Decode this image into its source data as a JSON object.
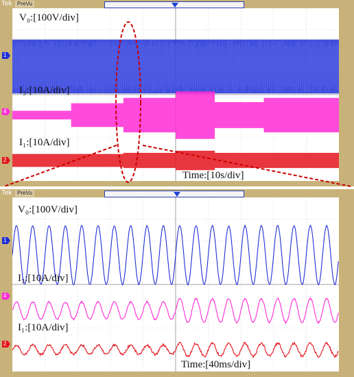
{
  "colors": {
    "frame": "#c8b27a",
    "ch1": "#1f2fd6",
    "ch4": "#ff2bd6",
    "ch2": "#e4141c",
    "grid": "#b9b9b9",
    "annotation": "#cc0000"
  },
  "top_scope": {
    "brand": "Tek",
    "mode": "PreVu",
    "labels": {
      "v0": "V₀:[100V/div]",
      "i3": "I₃:[10A/div]",
      "i1": "I₁:[10A/div]",
      "time": "Time:[10s/div]"
    },
    "markers": [
      "1",
      "4",
      "2"
    ]
  },
  "bottom_scope": {
    "brand": "Tek",
    "mode": "PreVu",
    "labels": {
      "v0": "V₀:[100V/div]",
      "i3": "I₃:[10A/div]",
      "i1": "I₁:[10A/div]",
      "time": "Time:[40ms/div]"
    },
    "markers": [
      "1",
      "4",
      "2"
    ]
  },
  "chart_data": [
    {
      "type": "line",
      "title": "",
      "x_unit_per_div": "10s/div",
      "grid": true,
      "grid_divisions": [
        10,
        8
      ],
      "series": [
        {
          "name": "V₀",
          "scale": "100V/div",
          "style": "envelope",
          "envelope_levels_div": [
            2.5,
            2.5,
            2.5,
            2.5,
            2.5,
            2.5,
            2.5,
            2.5,
            2.5,
            2.5
          ]
        },
        {
          "name": "I₃",
          "scale": "10A/div",
          "style": "envelope",
          "envelope_steps": [
            [
              0.0,
              1.8,
              0.2
            ],
            [
              1.8,
              3.4,
              0.55
            ],
            [
              3.4,
              5.0,
              0.8
            ],
            [
              5.0,
              6.2,
              1.1
            ],
            [
              6.2,
              7.7,
              0.6
            ],
            [
              7.7,
              10.0,
              0.8
            ]
          ]
        },
        {
          "name": "I₁",
          "scale": "10A/div",
          "style": "envelope",
          "envelope_steps": [
            [
              0.0,
              3.4,
              0.3
            ],
            [
              3.4,
              5.0,
              0.35
            ],
            [
              5.0,
              6.2,
              0.45
            ],
            [
              6.2,
              10.0,
              0.35
            ]
          ]
        }
      ]
    },
    {
      "type": "line",
      "title": "",
      "x_unit_per_div": "40ms/div",
      "grid": true,
      "grid_divisions": [
        10,
        8
      ],
      "series": [
        {
          "name": "V₀",
          "scale": "100V/div",
          "cycles": 20,
          "amplitude_div": 1.35
        },
        {
          "name": "I₃",
          "scale": "10A/div",
          "cycles": 20,
          "amplitude_div": [
            0.4,
            0.55
          ]
        },
        {
          "name": "I₁",
          "scale": "10A/div",
          "cycles": 20,
          "amplitude_div": [
            0.22,
            0.3
          ]
        }
      ]
    }
  ]
}
